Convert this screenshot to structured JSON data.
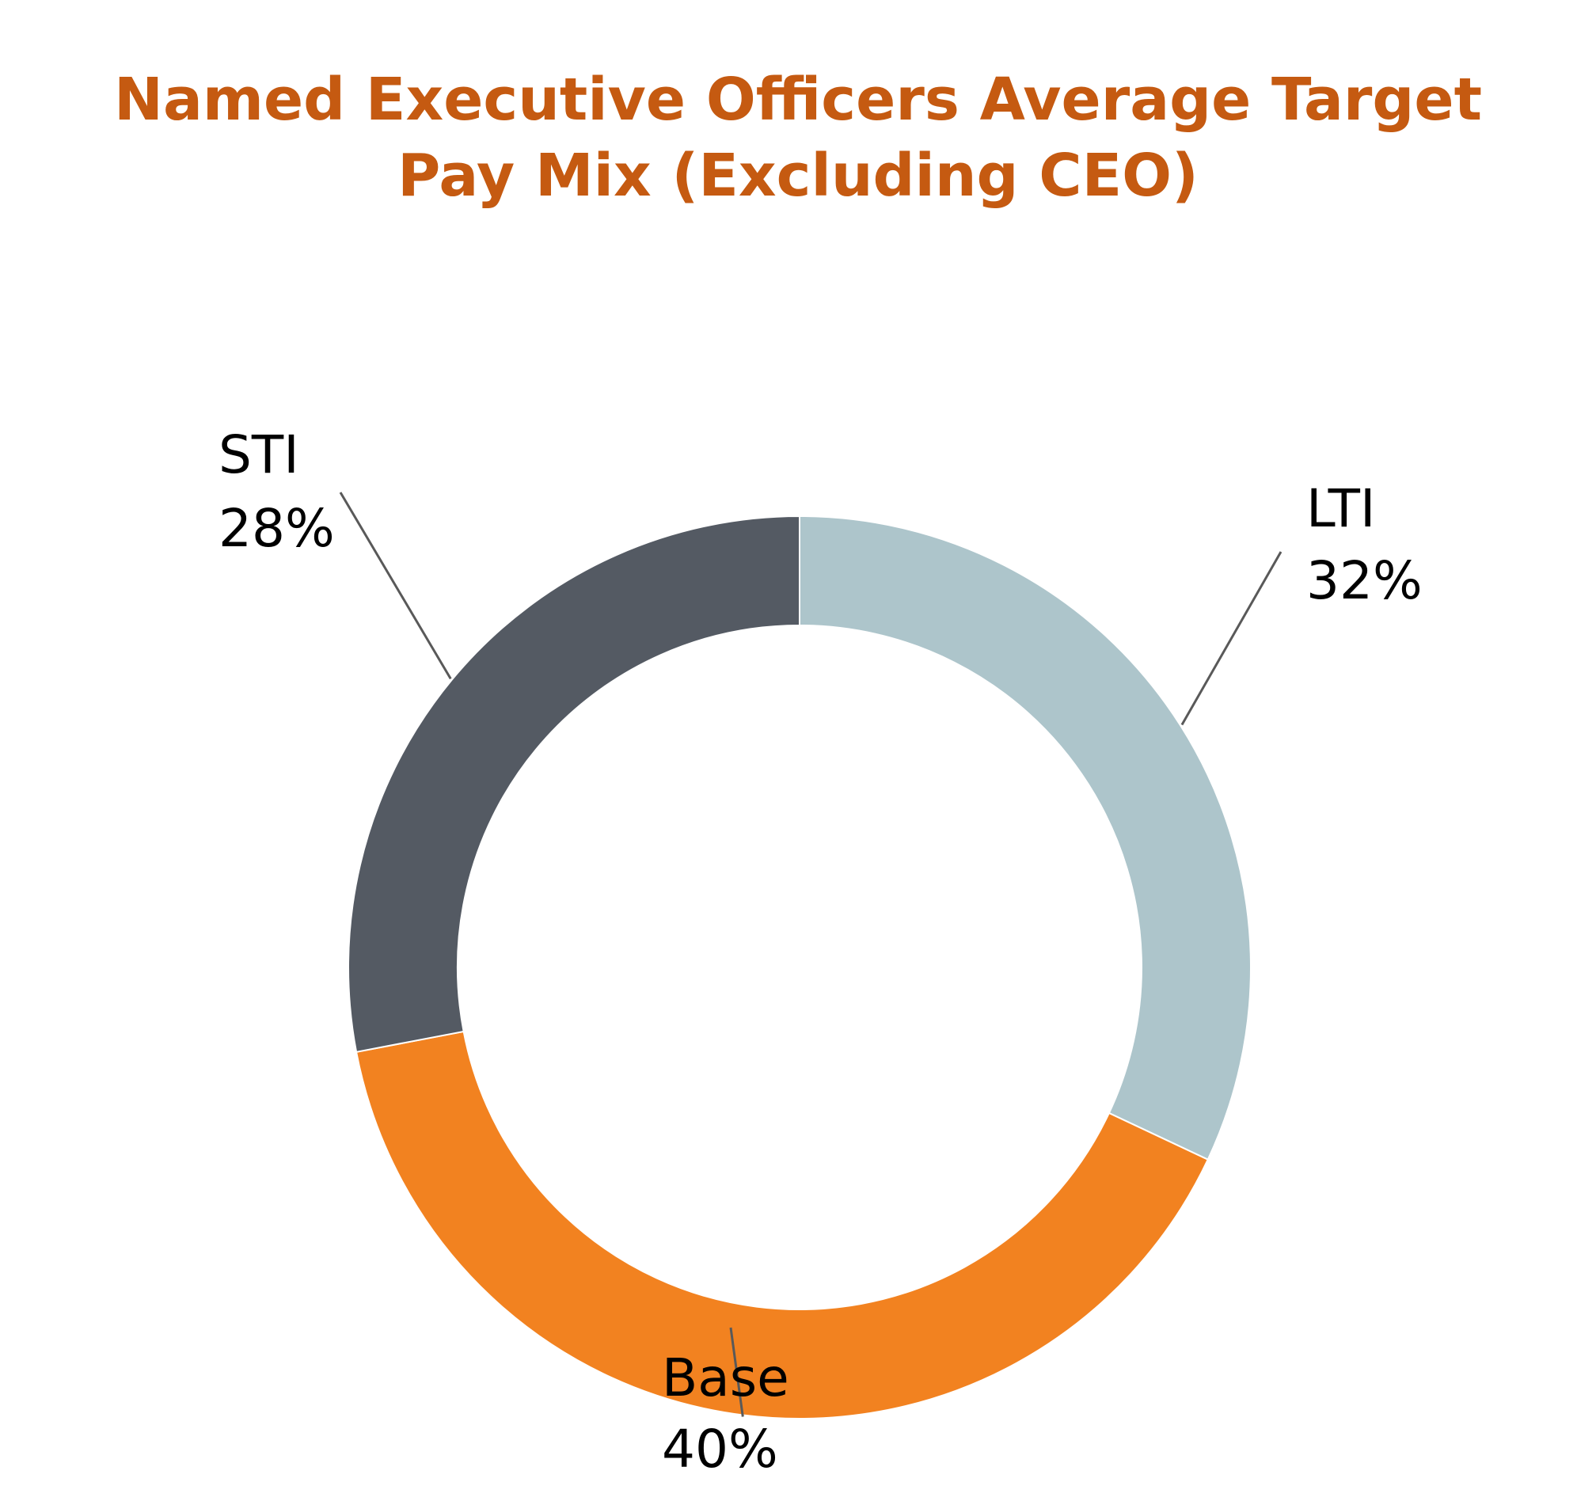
{
  "chart_data": {
    "type": "pie",
    "variant": "donut",
    "title_lines": [
      "Named Executive Officers Average Target",
      "Pay Mix (Excluding CEO)"
    ],
    "slices": [
      {
        "name": "LTI",
        "value": 32,
        "label": "32%",
        "color": "#adc5cb"
      },
      {
        "name": "Base",
        "value": 40,
        "label": "40%",
        "color": "#f28220"
      },
      {
        "name": "STI",
        "value": 28,
        "label": "28%",
        "color": "#545a63"
      }
    ],
    "start_angle_deg": 0,
    "direction": "clockwise",
    "leader_lines": true
  }
}
